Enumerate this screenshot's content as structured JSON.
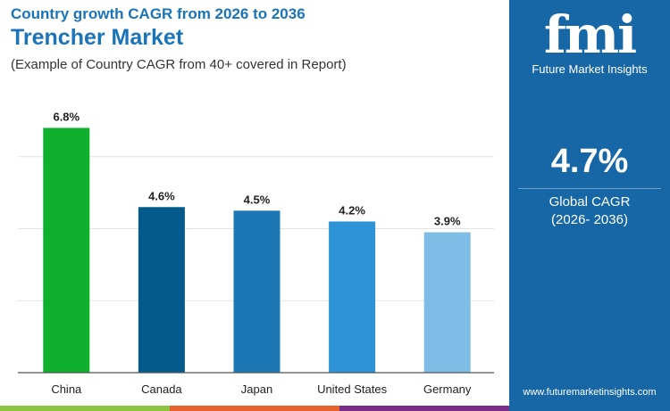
{
  "header": {
    "supertitle": "Country growth CAGR from 2026 to 2036",
    "title": "Trencher Market",
    "subtitle": "(Example of Country CAGR from 40+ covered in Report)"
  },
  "panel": {
    "logo_text": "fmi",
    "logo_sub": "Future Market Insights",
    "cagr_value": "4.7%",
    "cagr_label": "Global CAGR",
    "cagr_period": "(2026- 2036)",
    "url": "www.futuremarketinsights.com",
    "bg_color": "#1767a6"
  },
  "chart_data": {
    "type": "bar",
    "categories": [
      "China",
      "Canada",
      "Japan",
      "United States",
      "Germany"
    ],
    "values": [
      6.8,
      4.6,
      4.5,
      4.2,
      3.9
    ],
    "labels": [
      "6.8%",
      "4.6%",
      "4.5%",
      "4.2%",
      "3.9%"
    ],
    "colors": [
      "#10b02f",
      "#045a8d",
      "#1c77b4",
      "#2e93d6",
      "#80bde6"
    ],
    "ylim": [
      0,
      8
    ],
    "grid": true,
    "title": "",
    "xlabel": "",
    "ylabel": ""
  },
  "stripe_colors": [
    "#8cc43f",
    "#e8602c",
    "#7b2d8b"
  ]
}
